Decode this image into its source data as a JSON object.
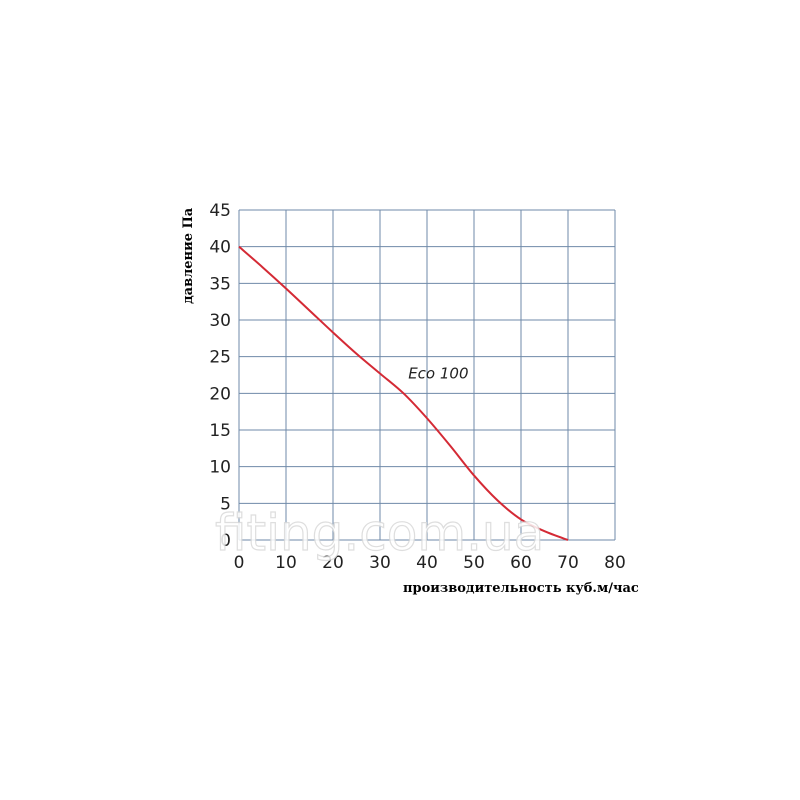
{
  "chart_data": {
    "type": "line",
    "title": "",
    "xlabel": "производительность куб.м/час",
    "ylabel": "давление Па",
    "xlim": [
      0,
      80
    ],
    "ylim": [
      0,
      45
    ],
    "x_ticks": [
      "0",
      "10",
      "20",
      "30",
      "40",
      "50",
      "60",
      "70",
      "80"
    ],
    "y_ticks": [
      "0",
      "5",
      "10",
      "15",
      "20",
      "25",
      "30",
      "35",
      "40",
      "45"
    ],
    "grid": true,
    "series": [
      {
        "name": "Eco 100",
        "color": "#d42a35",
        "x": [
          0,
          5,
          10,
          15,
          20,
          25,
          30,
          35,
          40,
          45,
          50,
          55,
          60,
          65,
          70
        ],
        "y": [
          40,
          37.2,
          34.3,
          31.3,
          28.3,
          25.4,
          22.7,
          20.0,
          16.6,
          12.8,
          8.8,
          5.4,
          2.8,
          1.2,
          0
        ]
      }
    ],
    "series_label_position": {
      "x": 36,
      "y": 22
    }
  },
  "watermark": "fiting.com.ua",
  "colors": {
    "grid": "#6f8aa8",
    "line": "#d42a35"
  }
}
